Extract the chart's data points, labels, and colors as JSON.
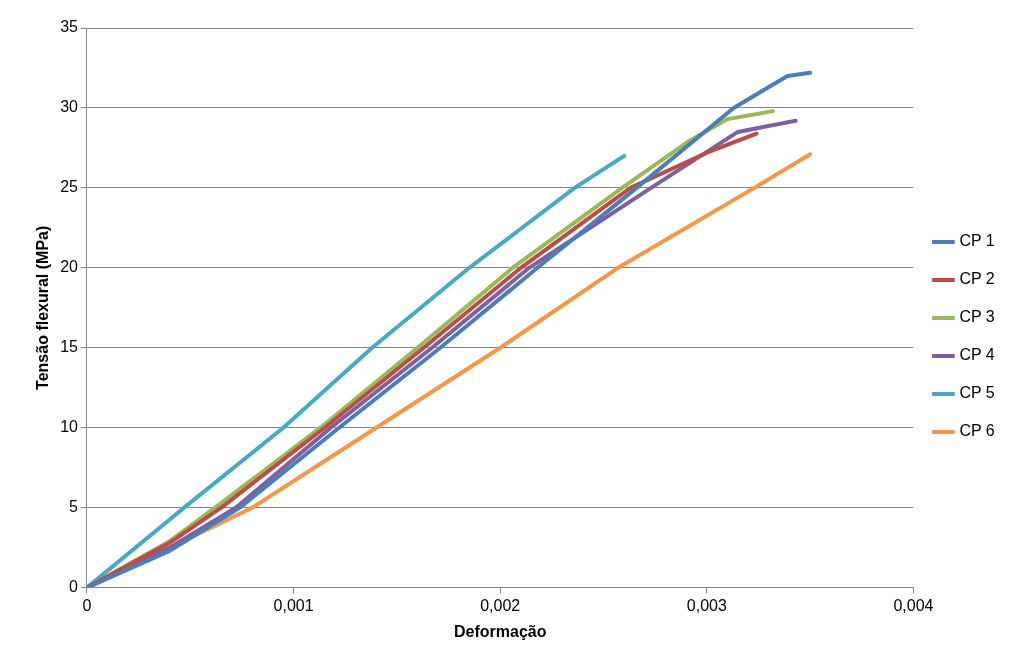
{
  "chart_data": {
    "type": "line",
    "xlabel": "Deformação",
    "ylabel": "Tensão flexural (MPa)",
    "xlim": [
      0,
      0.004
    ],
    "xticks": [
      0,
      {
        "value": 0.001,
        "label": "0,001"
      },
      {
        "value": 0.002,
        "label": "0,002"
      },
      {
        "value": 0.003,
        "label": "0,003"
      },
      {
        "value": 0.004,
        "label": "0,004"
      }
    ],
    "ylim": [
      0,
      35
    ],
    "yticks": [
      0,
      5,
      10,
      15,
      20,
      25,
      30,
      35
    ],
    "grid": "y",
    "legend": "right",
    "marker": "none",
    "line_style": "solid",
    "series": [
      {
        "name": "CP 1",
        "color": "#4a7ebb",
        "x": [
          0,
          0.0004,
          0.00074,
          0.00122,
          0.00171,
          0.00218,
          0.00266,
          0.00313,
          0.00339,
          0.0035
        ],
        "values": [
          0,
          2.3,
          5,
          10,
          15,
          20,
          25,
          30,
          32,
          32.2
        ]
      },
      {
        "name": "CP 2",
        "color": "#be4b48",
        "x": [
          0,
          0.0004,
          0.00065,
          0.00115,
          0.00163,
          0.0021,
          0.00263,
          0.003,
          0.00324
        ],
        "values": [
          0,
          2.8,
          5,
          10,
          15,
          20,
          25,
          27.2,
          28.4
        ]
      },
      {
        "name": "CP 3",
        "color": "#98b954",
        "x": [
          0,
          0.0004,
          0.00062,
          0.00113,
          0.0016,
          0.00206,
          0.00259,
          0.00291,
          0.0031,
          0.00332
        ],
        "values": [
          0,
          2.9,
          5,
          10,
          15,
          20,
          25,
          27.9,
          29.3,
          29.8
        ]
      },
      {
        "name": "CP 4",
        "color": "#7d60a0",
        "x": [
          0,
          0.0004,
          0.00072,
          0.00118,
          0.00167,
          0.00214,
          0.00273,
          0.00315,
          0.00343
        ],
        "values": [
          0,
          2.5,
          5,
          10,
          15,
          20,
          25,
          28.5,
          29.2
        ]
      },
      {
        "name": "CP 5",
        "color": "#46aac5",
        "x": [
          0,
          0.00047,
          0.00095,
          0.00138,
          0.00185,
          0.00236,
          0.0026
        ],
        "values": [
          0,
          5,
          10,
          15,
          20,
          25,
          27
        ]
      },
      {
        "name": "CP 6",
        "color": "#f79646",
        "x": [
          0,
          0.0004,
          0.0008,
          0.0014,
          0.002,
          0.00257,
          0.00323,
          0.0035
        ],
        "values": [
          0,
          2.5,
          5,
          10,
          15,
          20,
          25,
          27.1
        ]
      }
    ]
  }
}
